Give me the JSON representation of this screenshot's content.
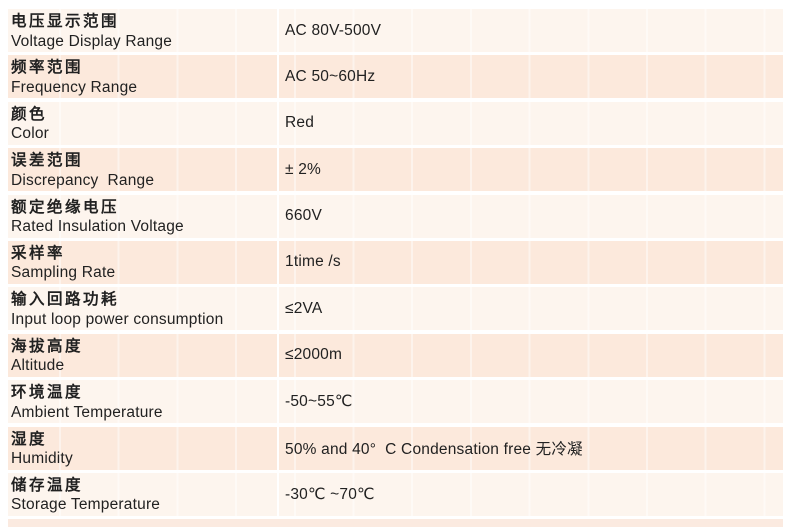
{
  "table": {
    "rows": [
      {
        "zh": "电压显示范围",
        "en": "Voltage Display Range",
        "value": "AC 80V-500V"
      },
      {
        "zh": "频率范围",
        "en": "Frequency Range",
        "value": "AC 50~60Hz"
      },
      {
        "zh": "颜色",
        "en": "Color",
        "value": "Red"
      },
      {
        "zh": "误差范围",
        "en": "Discrepancy  Range",
        "value": "± 2%"
      },
      {
        "zh": "额定绝缘电压",
        "en": "Rated Insulation Voltage",
        "value": "660V"
      },
      {
        "zh": "采样率",
        "en": "Sampling Rate",
        "value": "1time /s"
      },
      {
        "zh": "输入回路功耗",
        "en": "Input loop power consumption",
        "value": "≤2VA"
      },
      {
        "zh": "海拔高度",
        "en": "Altitude",
        "value": "≤2000m"
      },
      {
        "zh": "环境温度",
        "en": "Ambient Temperature",
        "value": "-50~55℃"
      },
      {
        "zh": "湿度",
        "en": "Humidity",
        "value": "50% and 40°  C Condensation free 无冷凝"
      },
      {
        "zh": "储存温度",
        "en": "Storage Temperature",
        "value": "-30℃ ~70℃"
      }
    ]
  },
  "colors": {
    "row_light": "#fdf5ee",
    "row_dark": "#fce9dc",
    "divider": "#ffffff",
    "strip": "#fbeae0",
    "text": "#212121",
    "page_bg": "#ffffff"
  }
}
